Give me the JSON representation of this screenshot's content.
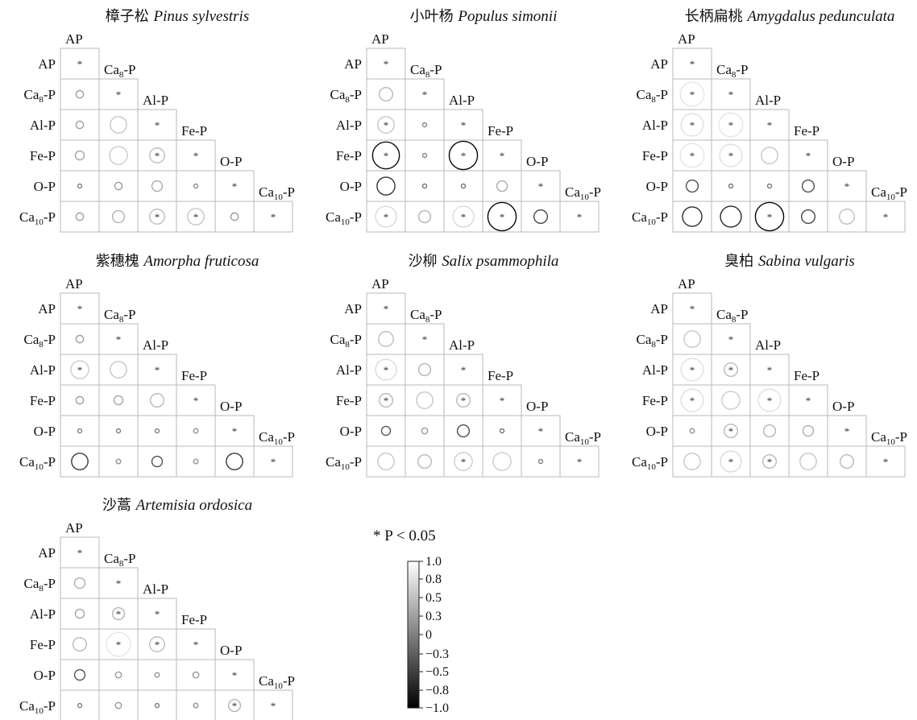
{
  "chart_data": {
    "type": "heatmap",
    "variables": [
      "AP",
      "Ca8-P",
      "Al-P",
      "Fe-P",
      "O-P",
      "Ca10-P"
    ],
    "significance_note": "* P < 0.05",
    "colorbar": {
      "ticks": [
        "1.0",
        "0.8",
        "0.5",
        "0.3",
        "0",
        "−0.3",
        "−0.5",
        "−0.8",
        "−1.0"
      ],
      "range": [
        -1.0,
        1.0
      ]
    },
    "panels": [
      {
        "title_cn": "樟子松",
        "title_latin": "Pinus sylvestris",
        "cells": [
          {
            "row": "Ca8-P",
            "col": "AP",
            "r": 0.25,
            "sig": false
          },
          {
            "row": "Al-P",
            "col": "AP",
            "r": 0.25,
            "sig": false
          },
          {
            "row": "Al-P",
            "col": "Ca8-P",
            "r": 0.55,
            "sig": false
          },
          {
            "row": "Fe-P",
            "col": "AP",
            "r": 0.3,
            "sig": false
          },
          {
            "row": "Fe-P",
            "col": "Ca8-P",
            "r": 0.6,
            "sig": false
          },
          {
            "row": "Fe-P",
            "col": "Al-P",
            "r": 0.5,
            "sig": true
          },
          {
            "row": "O-P",
            "col": "AP",
            "r": 0.0,
            "sig": false
          },
          {
            "row": "O-P",
            "col": "Ca8-P",
            "r": 0.25,
            "sig": false
          },
          {
            "row": "O-P",
            "col": "Al-P",
            "r": 0.35,
            "sig": false
          },
          {
            "row": "O-P",
            "col": "Fe-P",
            "r": 0.1,
            "sig": false
          },
          {
            "row": "Ca10-P",
            "col": "AP",
            "r": 0.25,
            "sig": false
          },
          {
            "row": "Ca10-P",
            "col": "Ca8-P",
            "r": 0.4,
            "sig": false
          },
          {
            "row": "Ca10-P",
            "col": "Al-P",
            "r": 0.5,
            "sig": true
          },
          {
            "row": "Ca10-P",
            "col": "Fe-P",
            "r": 0.55,
            "sig": true
          },
          {
            "row": "Ca10-P",
            "col": "O-P",
            "r": 0.25,
            "sig": false
          }
        ]
      },
      {
        "title_cn": "小叶杨",
        "title_latin": "Populus simonii",
        "cells": [
          {
            "row": "Ca8-P",
            "col": "AP",
            "r": 0.45,
            "sig": false
          },
          {
            "row": "Al-P",
            "col": "AP",
            "r": 0.55,
            "sig": true
          },
          {
            "row": "Al-P",
            "col": "Ca8-P",
            "r": 0.05,
            "sig": false
          },
          {
            "row": "Fe-P",
            "col": "AP",
            "r": -0.9,
            "sig": true
          },
          {
            "row": "Fe-P",
            "col": "Ca8-P",
            "r": 0.05,
            "sig": false
          },
          {
            "row": "Fe-P",
            "col": "Al-P",
            "r": -0.95,
            "sig": true
          },
          {
            "row": "O-P",
            "col": "AP",
            "r": -0.6,
            "sig": false
          },
          {
            "row": "O-P",
            "col": "Ca8-P",
            "r": -0.1,
            "sig": false
          },
          {
            "row": "O-P",
            "col": "Al-P",
            "r": -0.1,
            "sig": false
          },
          {
            "row": "O-P",
            "col": "Fe-P",
            "r": 0.35,
            "sig": false
          },
          {
            "row": "Ca10-P",
            "col": "AP",
            "r": 0.7,
            "sig": true
          },
          {
            "row": "Ca10-P",
            "col": "Ca8-P",
            "r": 0.4,
            "sig": false
          },
          {
            "row": "Ca10-P",
            "col": "Al-P",
            "r": 0.7,
            "sig": true
          },
          {
            "row": "Ca10-P",
            "col": "Fe-P",
            "r": -0.95,
            "sig": true
          },
          {
            "row": "Ca10-P",
            "col": "O-P",
            "r": -0.45,
            "sig": false
          }
        ]
      },
      {
        "title_cn": "长柄扁桃",
        "title_latin": "Amygdalus pedunculata",
        "cells": [
          {
            "row": "Ca8-P",
            "col": "AP",
            "r": 0.8,
            "sig": true
          },
          {
            "row": "Al-P",
            "col": "AP",
            "r": 0.75,
            "sig": true
          },
          {
            "row": "Al-P",
            "col": "Ca8-P",
            "r": 0.8,
            "sig": true
          },
          {
            "row": "Fe-P",
            "col": "AP",
            "r": 0.8,
            "sig": true
          },
          {
            "row": "Fe-P",
            "col": "Ca8-P",
            "r": 0.75,
            "sig": true
          },
          {
            "row": "Fe-P",
            "col": "Al-P",
            "r": 0.55,
            "sig": false
          },
          {
            "row": "O-P",
            "col": "AP",
            "r": -0.4,
            "sig": false
          },
          {
            "row": "O-P",
            "col": "Ca8-P",
            "r": -0.1,
            "sig": false
          },
          {
            "row": "O-P",
            "col": "Al-P",
            "r": -0.05,
            "sig": false
          },
          {
            "row": "O-P",
            "col": "Fe-P",
            "r": -0.4,
            "sig": false
          },
          {
            "row": "Ca10-P",
            "col": "AP",
            "r": -0.65,
            "sig": false
          },
          {
            "row": "Ca10-P",
            "col": "Ca8-P",
            "r": -0.7,
            "sig": false
          },
          {
            "row": "Ca10-P",
            "col": "Al-P",
            "r": -0.95,
            "sig": true
          },
          {
            "row": "Ca10-P",
            "col": "Fe-P",
            "r": -0.45,
            "sig": false
          },
          {
            "row": "Ca10-P",
            "col": "O-P",
            "r": 0.5,
            "sig": false
          }
        ]
      },
      {
        "title_cn": "紫穗槐",
        "title_latin": "Amorpha fruticosa",
        "cells": [
          {
            "row": "Ca8-P",
            "col": "AP",
            "r": 0.25,
            "sig": false
          },
          {
            "row": "Al-P",
            "col": "AP",
            "r": 0.6,
            "sig": true
          },
          {
            "row": "Al-P",
            "col": "Ca8-P",
            "r": 0.55,
            "sig": false
          },
          {
            "row": "Fe-P",
            "col": "AP",
            "r": 0.25,
            "sig": false
          },
          {
            "row": "Fe-P",
            "col": "Ca8-P",
            "r": 0.3,
            "sig": false
          },
          {
            "row": "Fe-P",
            "col": "Al-P",
            "r": 0.45,
            "sig": false
          },
          {
            "row": "O-P",
            "col": "AP",
            "r": 0.0,
            "sig": false
          },
          {
            "row": "O-P",
            "col": "Ca8-P",
            "r": 0.0,
            "sig": false
          },
          {
            "row": "O-P",
            "col": "Al-P",
            "r": 0.0,
            "sig": false
          },
          {
            "row": "O-P",
            "col": "Fe-P",
            "r": 0.15,
            "sig": false
          },
          {
            "row": "Ca10-P",
            "col": "AP",
            "r": -0.55,
            "sig": false
          },
          {
            "row": "Ca10-P",
            "col": "Ca8-P",
            "r": 0.15,
            "sig": false
          },
          {
            "row": "Ca10-P",
            "col": "Al-P",
            "r": -0.35,
            "sig": false
          },
          {
            "row": "Ca10-P",
            "col": "Fe-P",
            "r": 0.15,
            "sig": false
          },
          {
            "row": "Ca10-P",
            "col": "O-P",
            "r": -0.55,
            "sig": false
          }
        ]
      },
      {
        "title_cn": "沙柳",
        "title_latin": "Salix psammophila",
        "cells": [
          {
            "row": "Ca8-P",
            "col": "AP",
            "r": 0.5,
            "sig": false
          },
          {
            "row": "Al-P",
            "col": "AP",
            "r": 0.7,
            "sig": true
          },
          {
            "row": "Al-P",
            "col": "Ca8-P",
            "r": 0.4,
            "sig": false
          },
          {
            "row": "Fe-P",
            "col": "AP",
            "r": 0.45,
            "sig": true
          },
          {
            "row": "Fe-P",
            "col": "Ca8-P",
            "r": 0.55,
            "sig": false
          },
          {
            "row": "Fe-P",
            "col": "Al-P",
            "r": 0.45,
            "sig": true
          },
          {
            "row": "O-P",
            "col": "AP",
            "r": -0.3,
            "sig": false
          },
          {
            "row": "O-P",
            "col": "Ca8-P",
            "r": 0.2,
            "sig": false
          },
          {
            "row": "O-P",
            "col": "Al-P",
            "r": -0.4,
            "sig": false
          },
          {
            "row": "O-P",
            "col": "Fe-P",
            "r": -0.1,
            "sig": false
          },
          {
            "row": "Ca10-P",
            "col": "AP",
            "r": 0.55,
            "sig": false
          },
          {
            "row": "Ca10-P",
            "col": "Ca8-P",
            "r": 0.45,
            "sig": false
          },
          {
            "row": "Ca10-P",
            "col": "Al-P",
            "r": 0.6,
            "sig": true
          },
          {
            "row": "Ca10-P",
            "col": "Fe-P",
            "r": 0.6,
            "sig": false
          },
          {
            "row": "Ca10-P",
            "col": "O-P",
            "r": 0.0,
            "sig": false
          }
        ]
      },
      {
        "title_cn": "臭柏",
        "title_latin": "Sabina vulgaris",
        "cells": [
          {
            "row": "Ca8-P",
            "col": "AP",
            "r": 0.55,
            "sig": false
          },
          {
            "row": "Al-P",
            "col": "AP",
            "r": 0.75,
            "sig": true
          },
          {
            "row": "Al-P",
            "col": "Ca8-P",
            "r": 0.45,
            "sig": true
          },
          {
            "row": "Fe-P",
            "col": "AP",
            "r": 0.75,
            "sig": true
          },
          {
            "row": "Fe-P",
            "col": "Ca8-P",
            "r": 0.6,
            "sig": false
          },
          {
            "row": "Fe-P",
            "col": "Al-P",
            "r": 0.75,
            "sig": true
          },
          {
            "row": "O-P",
            "col": "AP",
            "r": 0.15,
            "sig": false
          },
          {
            "row": "O-P",
            "col": "Ca8-P",
            "r": 0.45,
            "sig": true
          },
          {
            "row": "O-P",
            "col": "Al-P",
            "r": 0.4,
            "sig": false
          },
          {
            "row": "O-P",
            "col": "Fe-P",
            "r": 0.35,
            "sig": false
          },
          {
            "row": "Ca10-P",
            "col": "AP",
            "r": 0.55,
            "sig": false
          },
          {
            "row": "Ca10-P",
            "col": "Ca8-P",
            "r": 0.7,
            "sig": true
          },
          {
            "row": "Ca10-P",
            "col": "Al-P",
            "r": 0.45,
            "sig": true
          },
          {
            "row": "Ca10-P",
            "col": "Fe-P",
            "r": 0.55,
            "sig": false
          },
          {
            "row": "Ca10-P",
            "col": "O-P",
            "r": 0.45,
            "sig": false
          }
        ]
      },
      {
        "title_cn": "沙蒿",
        "title_latin": "Artemisia ordosica",
        "cells": [
          {
            "row": "Ca8-P",
            "col": "AP",
            "r": 0.35,
            "sig": false
          },
          {
            "row": "Al-P",
            "col": "AP",
            "r": 0.3,
            "sig": false
          },
          {
            "row": "Al-P",
            "col": "Ca8-P",
            "r": 0.4,
            "sig": true
          },
          {
            "row": "Fe-P",
            "col": "AP",
            "r": 0.45,
            "sig": false
          },
          {
            "row": "Fe-P",
            "col": "Ca8-P",
            "r": 0.8,
            "sig": true
          },
          {
            "row": "Fe-P",
            "col": "Al-P",
            "r": 0.5,
            "sig": true
          },
          {
            "row": "O-P",
            "col": "AP",
            "r": -0.35,
            "sig": false
          },
          {
            "row": "O-P",
            "col": "Ca8-P",
            "r": 0.2,
            "sig": false
          },
          {
            "row": "O-P",
            "col": "Al-P",
            "r": 0.15,
            "sig": false
          },
          {
            "row": "O-P",
            "col": "Fe-P",
            "r": 0.2,
            "sig": false
          },
          {
            "row": "Ca10-P",
            "col": "AP",
            "r": 0.0,
            "sig": false
          },
          {
            "row": "Ca10-P",
            "col": "Ca8-P",
            "r": 0.2,
            "sig": false
          },
          {
            "row": "Ca10-P",
            "col": "Al-P",
            "r": 0.0,
            "sig": false
          },
          {
            "row": "Ca10-P",
            "col": "Fe-P",
            "r": 0.15,
            "sig": false
          },
          {
            "row": "Ca10-P",
            "col": "O-P",
            "r": 0.4,
            "sig": true
          }
        ]
      }
    ]
  }
}
